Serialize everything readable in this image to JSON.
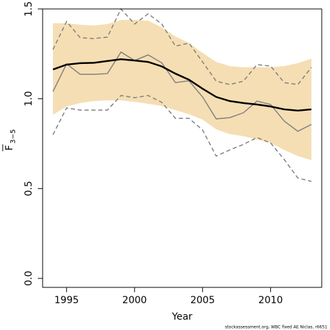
{
  "chart_data": {
    "type": "line",
    "x_label": "Year",
    "y_label": "F",
    "y_label_sub": "3−5",
    "footer": "stockassessment.org, WBC fixed AE Niclas, r6651",
    "x": [
      1994,
      1995,
      1996,
      1997,
      1998,
      1999,
      2000,
      2001,
      2002,
      2003,
      2004,
      2005,
      2006,
      2007,
      2008,
      2009,
      2010,
      2011,
      2012,
      2013
    ],
    "band": {
      "color": "#f5deb3",
      "upper": [
        1.42,
        1.42,
        1.412,
        1.408,
        1.416,
        1.439,
        1.439,
        1.435,
        1.397,
        1.347,
        1.31,
        1.255,
        1.205,
        1.182,
        1.175,
        1.175,
        1.175,
        1.182,
        1.198,
        1.224
      ],
      "lower": [
        0.911,
        0.957,
        0.976,
        0.987,
        0.991,
        0.991,
        0.983,
        0.972,
        0.96,
        0.937,
        0.914,
        0.884,
        0.83,
        0.803,
        0.792,
        0.773,
        0.754,
        0.715,
        0.681,
        0.658
      ]
    },
    "series": [
      {
        "color": "#808080",
        "width": 1.5,
        "dash": true,
        "values": [
          1.274,
          1.43,
          1.34,
          1.335,
          1.343,
          1.5,
          1.416,
          1.473,
          1.416,
          1.293,
          1.31,
          1.205,
          1.098,
          1.079,
          1.098,
          1.19,
          1.182,
          1.09,
          1.079,
          1.175
        ]
      },
      {
        "color": "#808080",
        "width": 1.5,
        "dash": true,
        "values": [
          0.8,
          0.949,
          0.937,
          0.937,
          0.937,
          1.018,
          1.006,
          1.018,
          0.98,
          0.891,
          0.891,
          0.826,
          0.681,
          0.715,
          0.746,
          0.784,
          0.754,
          0.662,
          0.559,
          0.54
        ]
      },
      {
        "color": "#808080",
        "width": 1.5,
        "dash": false,
        "values": [
          1.04,
          1.194,
          1.136,
          1.136,
          1.14,
          1.26,
          1.213,
          1.244,
          1.2,
          1.09,
          1.1,
          1.01,
          0.888,
          0.895,
          0.922,
          0.987,
          0.968,
          0.876,
          0.819,
          0.857
        ]
      },
      {
        "color": "#000000",
        "width": 2.5,
        "dash": false,
        "values": [
          1.163,
          1.19,
          1.198,
          1.2,
          1.21,
          1.22,
          1.213,
          1.205,
          1.18,
          1.14,
          1.106,
          1.056,
          1.01,
          0.987,
          0.976,
          0.968,
          0.957,
          0.941,
          0.934,
          0.941
        ]
      }
    ],
    "xlim": [
      1993.24,
      2013.76
    ],
    "ylim": [
      -0.05,
      1.5
    ],
    "xticks": [
      1995,
      2000,
      2005,
      2010
    ],
    "yticks": [
      {
        "value": 0,
        "label": "0.0"
      },
      0.5,
      {
        "value": 1,
        "label": "1.0"
      },
      1.5
    ]
  }
}
